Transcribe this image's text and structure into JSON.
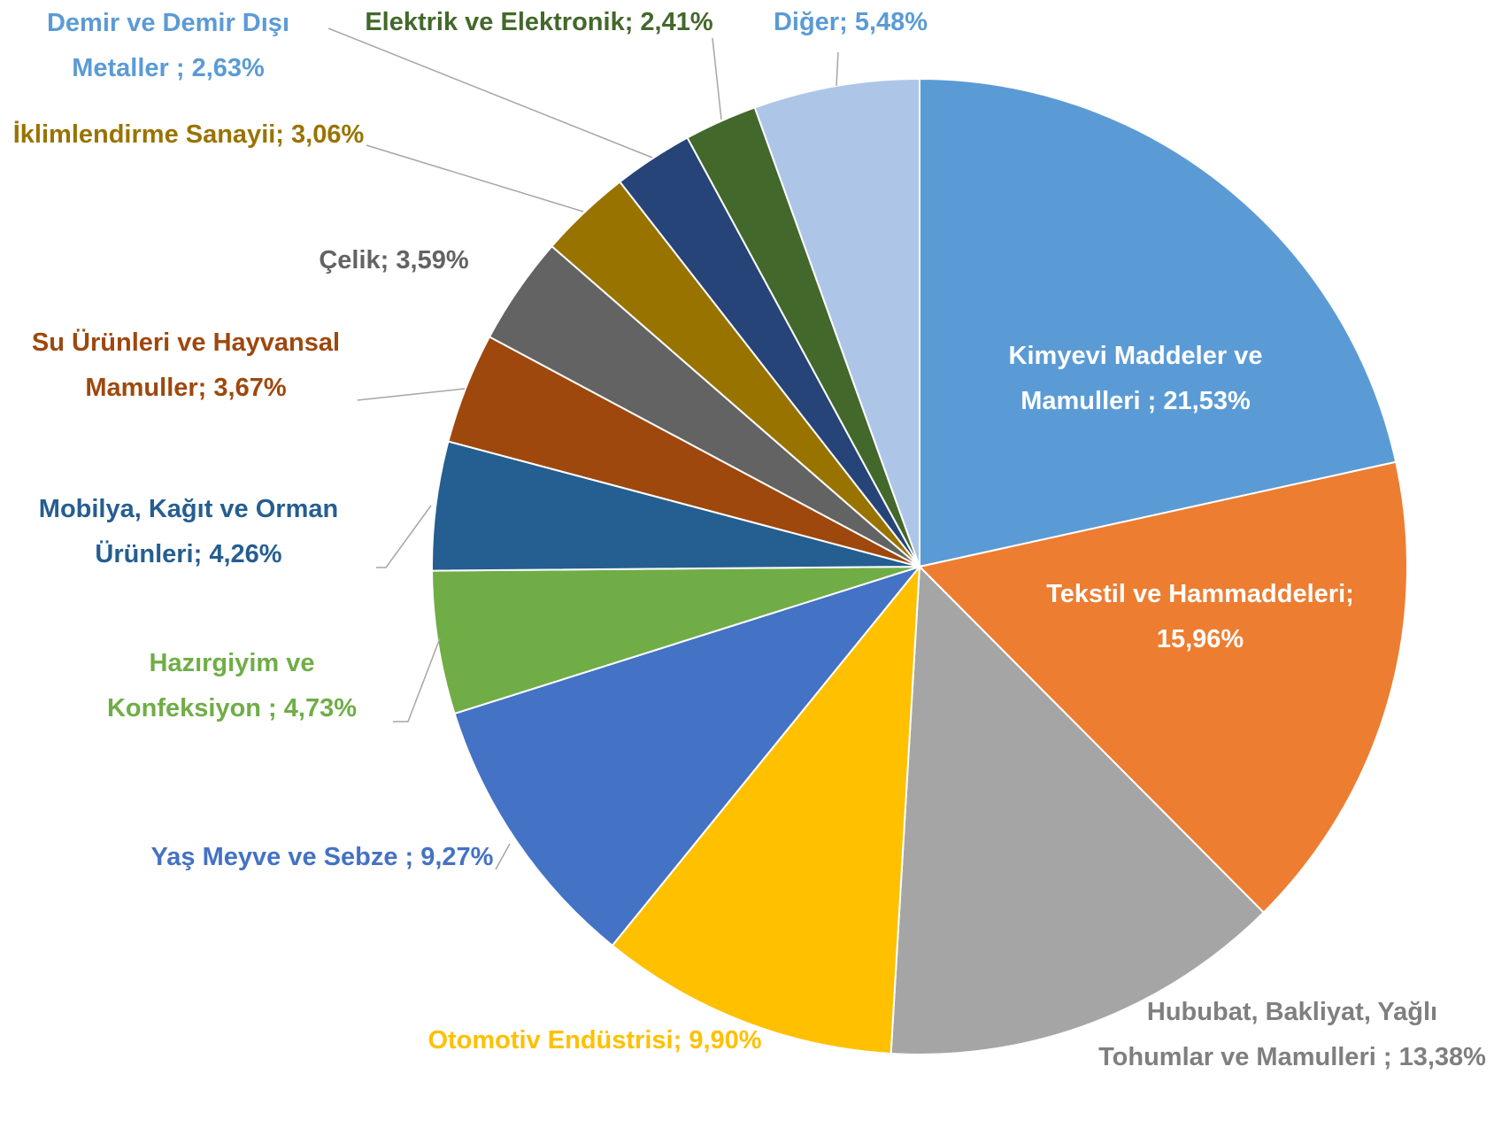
{
  "chart_data": {
    "type": "pie",
    "categories": [
      "Kimyevi Maddeler ve Mamulleri  ;",
      "Tekstil ve Hammaddeleri;",
      "Hububat, Bakliyat, Yağlı Tohumlar ve Mamulleri ;",
      "Otomotiv Endüstrisi;",
      "Yaş Meyve ve Sebze  ;",
      "Hazırgiyim ve Konfeksiyon ;",
      "Mobilya, Kağıt ve Orman Ürünleri;",
      "Su Ürünleri ve Hayvansal Mamuller;",
      "Çelik;",
      "İklimlendirme Sanayii;",
      "Demir ve Demir Dışı Metaller ;",
      "Elektrik ve Elektronik;",
      "Diğer;"
    ],
    "values": [
      21.53,
      15.96,
      13.38,
      9.9,
      9.27,
      4.73,
      4.26,
      3.67,
      3.59,
      3.06,
      2.63,
      2.41,
      5.48
    ],
    "value_labels": [
      "21,53%",
      "15,96%",
      "13,38%",
      "9,90%",
      "9,27%",
      "4,73%",
      "4,26%",
      "3,67%",
      "3,59%",
      "3,06%",
      "2,63%",
      "2,41%",
      "5,48%"
    ],
    "colors": [
      "#5b9bd5",
      "#ed7d31",
      "#a5a5a5",
      "#ffc000",
      "#4472c4",
      "#70ad47",
      "#255e91",
      "#9e480e",
      "#636363",
      "#997300",
      "#264478",
      "#43682b",
      "#adc6e8"
    ],
    "label_colors": [
      "#ffffff",
      "#ffffff",
      "#7f7f7f",
      "#ffc000",
      "#4472c4",
      "#70ad47",
      "#255e91",
      "#9e480e",
      "#636363",
      "#997300",
      "#5b9bd5",
      "#43682b",
      "#5b9bd5"
    ]
  }
}
